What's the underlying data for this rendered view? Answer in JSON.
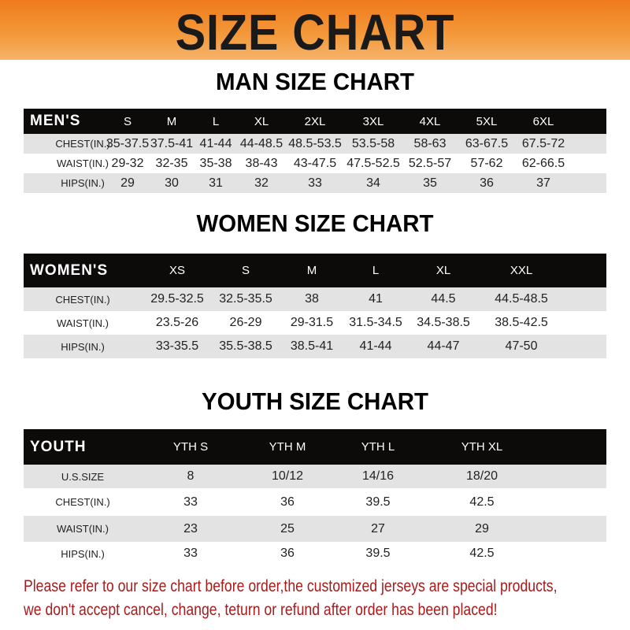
{
  "banner": {
    "title": "SIZE CHART",
    "color": "#f07a1c"
  },
  "men": {
    "title": "MAN SIZE CHART",
    "header": [
      "MEN'S",
      "S",
      "M",
      "L",
      "XL",
      "2XL",
      "3XL",
      "4XL",
      "5XL",
      "6XL"
    ],
    "rows": [
      [
        "CHEST(IN.)",
        "35-37.5",
        "37.5-41",
        "41-44",
        "44-48.5",
        "48.5-53.5",
        "53.5-58",
        "58-63",
        "63-67.5",
        "67.5-72"
      ],
      [
        "WAIST(IN.)",
        "29-32",
        "32-35",
        "35-38",
        "38-43",
        "43-47.5",
        "47.5-52.5",
        "52.5-57",
        "57-62",
        "62-66.5"
      ],
      [
        "HIPS(IN.)",
        "29",
        "30",
        "31",
        "32",
        "33",
        "34",
        "35",
        "36",
        "37"
      ]
    ]
  },
  "women": {
    "title": "WOMEN SIZE CHART",
    "header": [
      "WOMEN'S",
      "XS",
      "S",
      "M",
      "L",
      "XL",
      "XXL"
    ],
    "rows": [
      [
        "CHEST(IN.)",
        "29.5-32.5",
        "32.5-35.5",
        "38",
        "41",
        "44.5",
        "44.5-48.5"
      ],
      [
        "WAIST(IN.)",
        "23.5-26",
        "26-29",
        "29-31.5",
        "31.5-34.5",
        "34.5-38.5",
        "38.5-42.5"
      ],
      [
        "HIPS(IN.)",
        "33-35.5",
        "35.5-38.5",
        "38.5-41",
        "41-44",
        "44-47",
        "47-50"
      ]
    ]
  },
  "youth": {
    "title": "YOUTH SIZE CHART",
    "header": [
      "YOUTH",
      "YTH S",
      "YTH M",
      "YTH L",
      "YTH XL"
    ],
    "rows": [
      [
        "U.S.SIZE",
        "8",
        "10/12",
        "14/16",
        "18/20"
      ],
      [
        "CHEST(IN.)",
        "33",
        "36",
        "39.5",
        "42.5"
      ],
      [
        "WAIST(IN.)",
        "23",
        "25",
        "27",
        "29"
      ],
      [
        "HIPS(IN.)",
        "33",
        "36",
        "39.5",
        "42.5"
      ]
    ]
  },
  "note": {
    "line1": "Please refer to our size chart before order,the customized jerseys are special products,",
    "line2": "we don't accept cancel, change, teturn or refund after order has been placed!",
    "color": "#a51c1c"
  }
}
